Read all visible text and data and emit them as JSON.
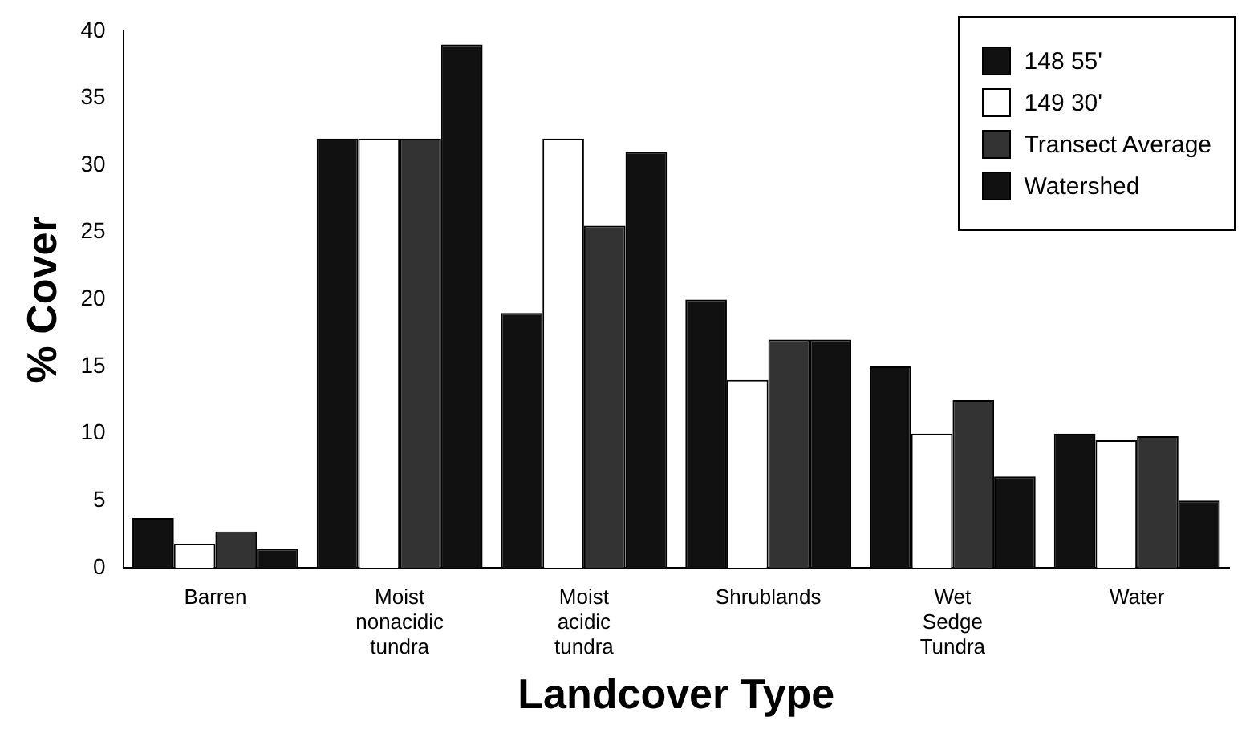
{
  "chart_data": {
    "type": "bar",
    "xlabel": "Landcover Type",
    "ylabel": "% Cover",
    "categories": [
      "Barren",
      "Moist nonacidic tundra",
      "Moist acidic tundra",
      "Shrublands",
      "Wet Sedge Tundra",
      "Water"
    ],
    "series": [
      {
        "name": "148  55'",
        "color": "#111111",
        "values": [
          3.7,
          32,
          19,
          20,
          15,
          10
        ]
      },
      {
        "name": "149  30'",
        "color": "#ffffff",
        "values": [
          1.8,
          32,
          32,
          14,
          10,
          9.5
        ]
      },
      {
        "name": "Transect Average",
        "color": "#333333",
        "values": [
          2.7,
          32,
          25.5,
          17,
          12.5,
          9.8
        ]
      },
      {
        "name": "Watershed",
        "color": "#111111",
        "values": [
          1.4,
          39,
          31,
          17,
          6.8,
          5
        ]
      }
    ],
    "ylim": [
      0,
      40
    ],
    "yticks": [
      0,
      5,
      10,
      15,
      20,
      25,
      30,
      35,
      40
    ],
    "grid": false,
    "legend": "top right"
  }
}
